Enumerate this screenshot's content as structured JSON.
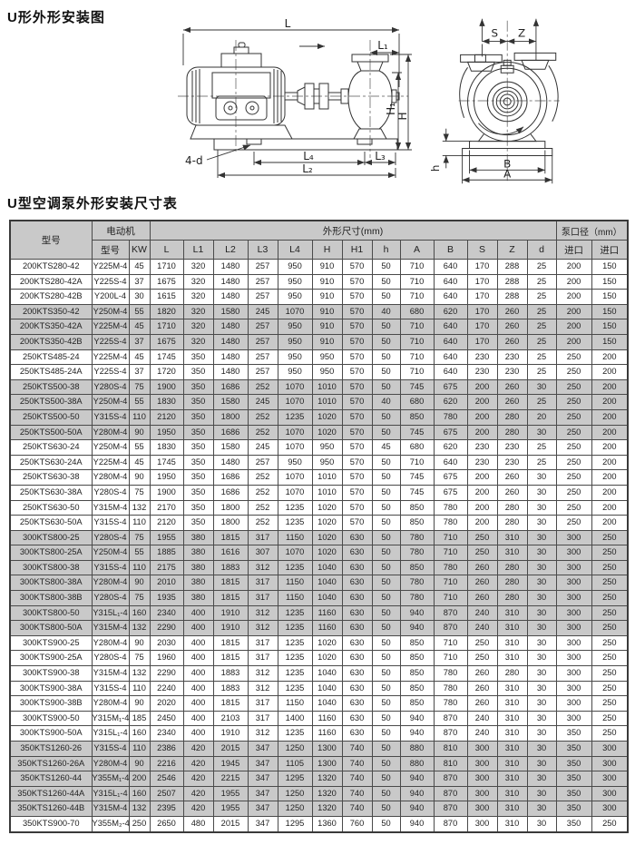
{
  "titles": {
    "diagram": "U形外形安装图",
    "table": "U型空调泵外形安装尺寸表"
  },
  "diagram_labels": {
    "left": {
      "L": "L",
      "L1": "L₁",
      "H1": "H₁",
      "H": "H",
      "d4": "4-d",
      "L4": "L₄",
      "L3": "L₃",
      "L2": "L₂"
    },
    "right": {
      "S": "S",
      "Z": "Z",
      "h": "h",
      "B": "B",
      "A": "A"
    }
  },
  "table": {
    "colors": {
      "header_bg": "#c9c9c9",
      "shaded_row_bg": "#c9c9c9",
      "border": "#4a4a4a"
    },
    "header": {
      "model": "型号",
      "motor": "电动机",
      "motor_model": "型号",
      "motor_kw": "KW",
      "dims": "外形尺寸(mm)",
      "dim_cols": [
        "L",
        "L1",
        "L2",
        "L3",
        "L4",
        "H",
        "H1",
        "h",
        "A",
        "B",
        "S",
        "Z",
        "d"
      ],
      "ports": "泵口径（mm）",
      "port_cols": [
        "进口",
        "进口"
      ]
    },
    "rows": [
      {
        "model": "200KTS280-42",
        "motor_model": "Y225M-4",
        "kw": "45",
        "dims": [
          "1710",
          "320",
          "1480",
          "257",
          "950",
          "910",
          "570",
          "50",
          "710",
          "640",
          "170",
          "288",
          "25"
        ],
        "ports": [
          "200",
          "150"
        ],
        "shaded": false
      },
      {
        "model": "200KTS280-42A",
        "motor_model": "Y225S-4",
        "kw": "37",
        "dims": [
          "1675",
          "320",
          "1480",
          "257",
          "950",
          "910",
          "570",
          "50",
          "710",
          "640",
          "170",
          "288",
          "25"
        ],
        "ports": [
          "200",
          "150"
        ],
        "shaded": false
      },
      {
        "model": "200KTS280-42B",
        "motor_model": "Y200L-4",
        "kw": "30",
        "dims": [
          "1615",
          "320",
          "1480",
          "257",
          "950",
          "910",
          "570",
          "50",
          "710",
          "640",
          "170",
          "288",
          "25"
        ],
        "ports": [
          "200",
          "150"
        ],
        "shaded": false
      },
      {
        "model": "200KTS350-42",
        "motor_model": "Y250M-4",
        "kw": "55",
        "dims": [
          "1820",
          "320",
          "1580",
          "245",
          "1070",
          "910",
          "570",
          "40",
          "680",
          "620",
          "170",
          "260",
          "25"
        ],
        "ports": [
          "200",
          "150"
        ],
        "shaded": true
      },
      {
        "model": "200KTS350-42A",
        "motor_model": "Y225M-4",
        "kw": "45",
        "dims": [
          "1710",
          "320",
          "1480",
          "257",
          "950",
          "910",
          "570",
          "50",
          "710",
          "640",
          "170",
          "260",
          "25"
        ],
        "ports": [
          "200",
          "150"
        ],
        "shaded": true
      },
      {
        "model": "200KTS350-42B",
        "motor_model": "Y225S-4",
        "kw": "37",
        "dims": [
          "1675",
          "320",
          "1480",
          "257",
          "950",
          "910",
          "570",
          "50",
          "710",
          "640",
          "170",
          "260",
          "25"
        ],
        "ports": [
          "200",
          "150"
        ],
        "shaded": true
      },
      {
        "model": "250KTS485-24",
        "motor_model": "Y225M-4",
        "kw": "45",
        "dims": [
          "1745",
          "350",
          "1480",
          "257",
          "950",
          "950",
          "570",
          "50",
          "710",
          "640",
          "230",
          "230",
          "25"
        ],
        "ports": [
          "250",
          "200"
        ],
        "shaded": false
      },
      {
        "model": "250KTS485-24A",
        "motor_model": "Y225S-4",
        "kw": "37",
        "dims": [
          "1720",
          "350",
          "1480",
          "257",
          "950",
          "950",
          "570",
          "50",
          "710",
          "640",
          "230",
          "230",
          "25"
        ],
        "ports": [
          "250",
          "200"
        ],
        "shaded": false
      },
      {
        "model": "250KTS500-38",
        "motor_model": "Y280S-4",
        "kw": "75",
        "dims": [
          "1900",
          "350",
          "1686",
          "252",
          "1070",
          "1010",
          "570",
          "50",
          "745",
          "675",
          "200",
          "260",
          "30"
        ],
        "ports": [
          "250",
          "200"
        ],
        "shaded": true
      },
      {
        "model": "250KTS500-38A",
        "motor_model": "Y250M-4",
        "kw": "55",
        "dims": [
          "1830",
          "350",
          "1580",
          "245",
          "1070",
          "1010",
          "570",
          "40",
          "680",
          "620",
          "200",
          "260",
          "25"
        ],
        "ports": [
          "250",
          "200"
        ],
        "shaded": true
      },
      {
        "model": "250KTS500-50",
        "motor_model": "Y315S-4",
        "kw": "110",
        "dims": [
          "2120",
          "350",
          "1800",
          "252",
          "1235",
          "1020",
          "570",
          "50",
          "850",
          "780",
          "200",
          "280",
          "20"
        ],
        "ports": [
          "250",
          "200"
        ],
        "shaded": true
      },
      {
        "model": "250KTS500-50A",
        "motor_model": "Y280M-4",
        "kw": "90",
        "dims": [
          "1950",
          "350",
          "1686",
          "252",
          "1070",
          "1020",
          "570",
          "50",
          "745",
          "675",
          "200",
          "280",
          "30"
        ],
        "ports": [
          "250",
          "200"
        ],
        "shaded": true
      },
      {
        "model": "250KTS630-24",
        "motor_model": "Y250M-4",
        "kw": "55",
        "dims": [
          "1830",
          "350",
          "1580",
          "245",
          "1070",
          "950",
          "570",
          "45",
          "680",
          "620",
          "230",
          "230",
          "25"
        ],
        "ports": [
          "250",
          "200"
        ],
        "shaded": false
      },
      {
        "model": "250KTS630-24A",
        "motor_model": "Y225M-4",
        "kw": "45",
        "dims": [
          "1745",
          "350",
          "1480",
          "257",
          "950",
          "950",
          "570",
          "50",
          "710",
          "640",
          "230",
          "230",
          "25"
        ],
        "ports": [
          "250",
          "200"
        ],
        "shaded": false
      },
      {
        "model": "250KTS630-38",
        "motor_model": "Y280M-4",
        "kw": "90",
        "dims": [
          "1950",
          "350",
          "1686",
          "252",
          "1070",
          "1010",
          "570",
          "50",
          "745",
          "675",
          "200",
          "260",
          "30"
        ],
        "ports": [
          "250",
          "200"
        ],
        "shaded": false
      },
      {
        "model": "250KTS630-38A",
        "motor_model": "Y280S-4",
        "kw": "75",
        "dims": [
          "1900",
          "350",
          "1686",
          "252",
          "1070",
          "1010",
          "570",
          "50",
          "745",
          "675",
          "200",
          "260",
          "30"
        ],
        "ports": [
          "250",
          "200"
        ],
        "shaded": false
      },
      {
        "model": "250KTS630-50",
        "motor_model": "Y315M-4",
        "kw": "132",
        "dims": [
          "2170",
          "350",
          "1800",
          "252",
          "1235",
          "1020",
          "570",
          "50",
          "850",
          "780",
          "200",
          "280",
          "30"
        ],
        "ports": [
          "250",
          "200"
        ],
        "shaded": false
      },
      {
        "model": "250KTS630-50A",
        "motor_model": "Y315S-4",
        "kw": "110",
        "dims": [
          "2120",
          "350",
          "1800",
          "252",
          "1235",
          "1020",
          "570",
          "50",
          "850",
          "780",
          "200",
          "280",
          "30"
        ],
        "ports": [
          "250",
          "200"
        ],
        "shaded": false
      },
      {
        "model": "300KTS800-25",
        "motor_model": "Y280S-4",
        "kw": "75",
        "dims": [
          "1955",
          "380",
          "1815",
          "317",
          "1150",
          "1020",
          "630",
          "50",
          "780",
          "710",
          "250",
          "310",
          "30"
        ],
        "ports": [
          "300",
          "250"
        ],
        "shaded": true
      },
      {
        "model": "300KTS800-25A",
        "motor_model": "Y250M-4",
        "kw": "55",
        "dims": [
          "1885",
          "380",
          "1616",
          "307",
          "1070",
          "1020",
          "630",
          "50",
          "780",
          "710",
          "250",
          "310",
          "30"
        ],
        "ports": [
          "300",
          "250"
        ],
        "shaded": true
      },
      {
        "model": "300KTS800-38",
        "motor_model": "Y315S-4",
        "kw": "110",
        "dims": [
          "2175",
          "380",
          "1883",
          "312",
          "1235",
          "1040",
          "630",
          "50",
          "850",
          "780",
          "260",
          "280",
          "30"
        ],
        "ports": [
          "300",
          "250"
        ],
        "shaded": true
      },
      {
        "model": "300KTS800-38A",
        "motor_model": "Y280M-4",
        "kw": "90",
        "dims": [
          "2010",
          "380",
          "1815",
          "317",
          "1150",
          "1040",
          "630",
          "50",
          "780",
          "710",
          "260",
          "280",
          "30"
        ],
        "ports": [
          "300",
          "250"
        ],
        "shaded": true
      },
      {
        "model": "300KTS800-38B",
        "motor_model": "Y280S-4",
        "kw": "75",
        "dims": [
          "1935",
          "380",
          "1815",
          "317",
          "1150",
          "1040",
          "630",
          "50",
          "780",
          "710",
          "260",
          "280",
          "30"
        ],
        "ports": [
          "300",
          "250"
        ],
        "shaded": true
      },
      {
        "model": "300KTS800-50",
        "motor_model": "Y315L₁-4",
        "kw": "160",
        "dims": [
          "2340",
          "400",
          "1910",
          "312",
          "1235",
          "1160",
          "630",
          "50",
          "940",
          "870",
          "240",
          "310",
          "30"
        ],
        "ports": [
          "300",
          "250"
        ],
        "shaded": true
      },
      {
        "model": "300KTS800-50A",
        "motor_model": "Y315M-4",
        "kw": "132",
        "dims": [
          "2290",
          "400",
          "1910",
          "312",
          "1235",
          "1160",
          "630",
          "50",
          "940",
          "870",
          "240",
          "310",
          "30"
        ],
        "ports": [
          "300",
          "250"
        ],
        "shaded": true
      },
      {
        "model": "300KTS900-25",
        "motor_model": "Y280M-4",
        "kw": "90",
        "dims": [
          "2030",
          "400",
          "1815",
          "317",
          "1235",
          "1020",
          "630",
          "50",
          "850",
          "710",
          "250",
          "310",
          "30"
        ],
        "ports": [
          "300",
          "250"
        ],
        "shaded": false
      },
      {
        "model": "300KTS900-25A",
        "motor_model": "Y280S-4",
        "kw": "75",
        "dims": [
          "1960",
          "400",
          "1815",
          "317",
          "1235",
          "1020",
          "630",
          "50",
          "850",
          "710",
          "250",
          "310",
          "30"
        ],
        "ports": [
          "300",
          "250"
        ],
        "shaded": false
      },
      {
        "model": "300KTS900-38",
        "motor_model": "Y315M-4",
        "kw": "132",
        "dims": [
          "2290",
          "400",
          "1883",
          "312",
          "1235",
          "1040",
          "630",
          "50",
          "850",
          "780",
          "260",
          "280",
          "30"
        ],
        "ports": [
          "300",
          "250"
        ],
        "shaded": false
      },
      {
        "model": "300KTS900-38A",
        "motor_model": "Y315S-4",
        "kw": "110",
        "dims": [
          "2240",
          "400",
          "1883",
          "312",
          "1235",
          "1040",
          "630",
          "50",
          "850",
          "780",
          "260",
          "310",
          "30"
        ],
        "ports": [
          "300",
          "250"
        ],
        "shaded": false
      },
      {
        "model": "300KTS900-38B",
        "motor_model": "Y280M-4",
        "kw": "90",
        "dims": [
          "2020",
          "400",
          "1815",
          "317",
          "1150",
          "1040",
          "630",
          "50",
          "850",
          "780",
          "260",
          "310",
          "30"
        ],
        "ports": [
          "300",
          "250"
        ],
        "shaded": false
      },
      {
        "model": "300KTS900-50",
        "motor_model": "Y315M₁-4",
        "kw": "185",
        "dims": [
          "2450",
          "400",
          "2103",
          "317",
          "1400",
          "1160",
          "630",
          "50",
          "940",
          "870",
          "240",
          "310",
          "30"
        ],
        "ports": [
          "300",
          "250"
        ],
        "shaded": false
      },
      {
        "model": "300KTS900-50A",
        "motor_model": "Y315L₁-4",
        "kw": "160",
        "dims": [
          "2340",
          "400",
          "1910",
          "312",
          "1235",
          "1160",
          "630",
          "50",
          "940",
          "870",
          "240",
          "310",
          "30"
        ],
        "ports": [
          "350",
          "250"
        ],
        "shaded": false
      },
      {
        "model": "350KTS1260-26",
        "motor_model": "Y315S-4",
        "kw": "110",
        "dims": [
          "2386",
          "420",
          "2015",
          "347",
          "1250",
          "1300",
          "740",
          "50",
          "880",
          "810",
          "300",
          "310",
          "30"
        ],
        "ports": [
          "350",
          "300"
        ],
        "shaded": true
      },
      {
        "model": "350KTS1260-26A",
        "motor_model": "Y280M-4",
        "kw": "90",
        "dims": [
          "2216",
          "420",
          "1945",
          "347",
          "1105",
          "1300",
          "740",
          "50",
          "880",
          "810",
          "300",
          "310",
          "30"
        ],
        "ports": [
          "350",
          "300"
        ],
        "shaded": true
      },
      {
        "model": "350KTS1260-44",
        "motor_model": "Y355M₁-4",
        "kw": "200",
        "dims": [
          "2546",
          "420",
          "2215",
          "347",
          "1295",
          "1320",
          "740",
          "50",
          "940",
          "870",
          "300",
          "310",
          "30"
        ],
        "ports": [
          "350",
          "300"
        ],
        "shaded": true
      },
      {
        "model": "350KTS1260-44A",
        "motor_model": "Y315L₁-4",
        "kw": "160",
        "dims": [
          "2507",
          "420",
          "1955",
          "347",
          "1250",
          "1320",
          "740",
          "50",
          "940",
          "870",
          "300",
          "310",
          "30"
        ],
        "ports": [
          "350",
          "300"
        ],
        "shaded": true
      },
      {
        "model": "350KTS1260-44B",
        "motor_model": "Y315M-4",
        "kw": "132",
        "dims": [
          "2395",
          "420",
          "1955",
          "347",
          "1250",
          "1320",
          "740",
          "50",
          "940",
          "870",
          "300",
          "310",
          "30"
        ],
        "ports": [
          "350",
          "300"
        ],
        "shaded": true
      },
      {
        "model": "350KTS900-70",
        "motor_model": "Y355M₂-4",
        "kw": "250",
        "dims": [
          "2650",
          "480",
          "2015",
          "347",
          "1295",
          "1360",
          "760",
          "50",
          "940",
          "870",
          "300",
          "310",
          "30"
        ],
        "ports": [
          "350",
          "250"
        ],
        "shaded": false
      }
    ]
  }
}
